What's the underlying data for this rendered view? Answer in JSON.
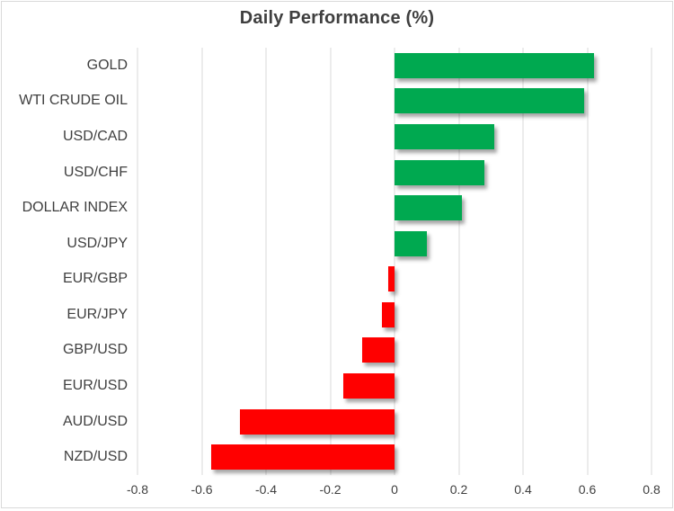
{
  "chart_data": {
    "type": "bar",
    "orientation": "horizontal",
    "title": "Daily Performance (%)",
    "categories": [
      "GOLD",
      "WTI CRUDE OIL",
      "USD/CAD",
      "USD/CHF",
      "DOLLAR INDEX",
      "USD/JPY",
      "EUR/GBP",
      "EUR/JPY",
      "GBP/USD",
      "EUR/USD",
      "AUD/USD",
      "NZD/USD"
    ],
    "values": [
      0.62,
      0.59,
      0.31,
      0.28,
      0.21,
      0.1,
      -0.02,
      -0.04,
      -0.1,
      -0.16,
      -0.48,
      -0.57
    ],
    "xlim": [
      -0.8,
      0.8
    ],
    "x_ticks": [
      -0.8,
      -0.6,
      -0.4,
      -0.2,
      0,
      0.2,
      0.4,
      0.6,
      0.8
    ],
    "x_tick_labels": [
      "-0.8",
      "-0.6",
      "-0.4",
      "-0.2",
      "0",
      "0.2",
      "0.4",
      "0.6",
      "0.8"
    ],
    "grid": "vertical-only",
    "legend": "none",
    "colors": {
      "positive": "#00a950",
      "negative": "#ff0000",
      "gridline": "#d9d9d9",
      "text": "#3f3f3f",
      "border": "#d9d9d9",
      "background": "#ffffff"
    }
  }
}
